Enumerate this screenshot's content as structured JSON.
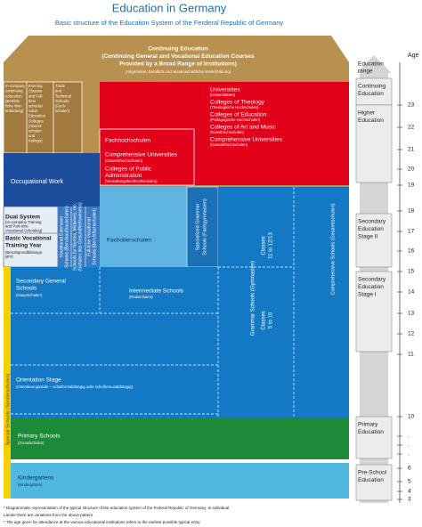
{
  "header": {
    "title": "Education in Germany",
    "subtitle": "Basic structure of the Education System of the Ferderal Republic of Germany"
  },
  "range_header": [
    "Education",
    "range"
  ],
  "age_header": "Age",
  "ranges": [
    [
      "Continuing",
      "Education"
    ],
    [
      "Higher",
      "Education"
    ],
    [
      "Secondary",
      "Education",
      "Stage II"
    ],
    [
      "Secondary",
      "Education",
      "Stage I"
    ],
    [
      "Primary",
      "Education"
    ],
    [
      "Pre-School",
      "Education"
    ]
  ],
  "ages": [
    "23",
    "22",
    "21",
    "20",
    "19",
    "18",
    "17",
    "16",
    "15",
    "14",
    "13",
    "12",
    "11",
    "10",
    ".",
    ".",
    ".",
    "6",
    "5",
    "4",
    "3"
  ],
  "roof": {
    "lines": [
      "Continuing Education",
      "(Continuing General and Vocational Education Courses",
      "Provided by a Broad Range of Institutions)"
    ],
    "note": "(Allgemeine, beruflich und wissenschaftliche Weiterbildung)"
  },
  "continuing_columns": [
    {
      "lines": [
        "In-company",
        "continuing",
        "education",
        "(Betrieb-",
        "liche Wei-",
        "terbildung)"
      ]
    },
    {
      "lines": [
        "Evening",
        "Classes",
        "and Full-",
        "time",
        "schools/",
        "Adult",
        "Education",
        "Colleges",
        "(Abend-",
        "schulen",
        "und",
        "Kollegs)"
      ]
    },
    {
      "lines": [
        "Trade",
        "and",
        "Technical",
        "Schools",
        "(Fach-",
        "schulen)"
      ]
    }
  ],
  "universities": [
    {
      "name": "Universities",
      "note": "(Universitäten)"
    },
    {
      "name": "Colleges of Theology",
      "note": "(Theologische Hochschulen)"
    },
    {
      "name": "Colleges of Education",
      "note": "(Pädagogische Hochschulen)"
    },
    {
      "name": "Colleges of Art and Music",
      "note": "(Kunsthochschulen)"
    },
    {
      "name": "Comprehensive Universities",
      "note": "(Gesamthochschulen)"
    }
  ],
  "fachhochschulen": {
    "title": "Fachhochschulen",
    "comprehensive": {
      "name": "Comprehensive Universities",
      "note": "(Gesamthochschulen)"
    },
    "public_admin": {
      "lines": [
        "Colleges of Public",
        "Administration"
      ],
      "note": "(Verwaltungsfachhochschulen)"
    }
  },
  "occupational_work": "Occupational Work",
  "dual_system": {
    "name": "Dual System",
    "note": [
      "(In-company Training",
      "and Part-time",
      "Vocational Schooling)"
    ]
  },
  "basic_vocational": {
    "lines": [
      "Basic Vocational",
      "Training Year"
    ],
    "note": [
      "(Berufsgrundbildungs-",
      "jahr)"
    ]
  },
  "vocational_columns": [
    {
      "lines": [
        "Vocational Extension",
        "Schools (Berufsaufbauschulen)"
      ]
    },
    {
      "lines": [
        "Schools for Nurses, Midwives, etc.",
        "(Schulen des Gesundheitswesens)"
      ]
    },
    {
      "lines": [
        "Full-time Vocational",
        "Schools (Berufsfachschulen)"
      ]
    }
  ],
  "fachoberschulen": "Fachoberschulen",
  "specialized_grammar": {
    "lines": [
      "Specialized Grammar",
      "Schools (Fachgymnasien)"
    ]
  },
  "grammar": {
    "name": "Grammar Schools (Gymnasien)",
    "upper": [
      "Classes",
      "11 to 12/13"
    ],
    "lower": [
      "Classes",
      "5 to 10"
    ]
  },
  "comprehensive_schools": "Comprehensive Schools (Gesamtschulen)",
  "secondary_general": {
    "lines": [
      "Secondary General",
      "Schools"
    ],
    "note": "(Hauptschulen)"
  },
  "intermediate": {
    "name": "Intermediate Schools",
    "note": "(Realschulen)"
  },
  "orientation": {
    "name": "Orientation Stage",
    "note": "(Orientierungsstufe – schulformabhängig oder schulformunabhängig)"
  },
  "special_schools": "Special Schools (Sonderschulen)",
  "primary": {
    "name": "Primary Schools",
    "note": "(Grundschulen)"
  },
  "kindergarten": {
    "name": "Kindergartens",
    "note": "(Kindergärten)"
  },
  "footnotes": [
    "* Diagrammatic representation of the typical structure of the education system of the Federal Republic of Germany. In individual",
    "Länder there are variations from the above pattern.",
    "* The age given for attendance at the various educational institutions refers to the earliest possible typical entry."
  ]
}
